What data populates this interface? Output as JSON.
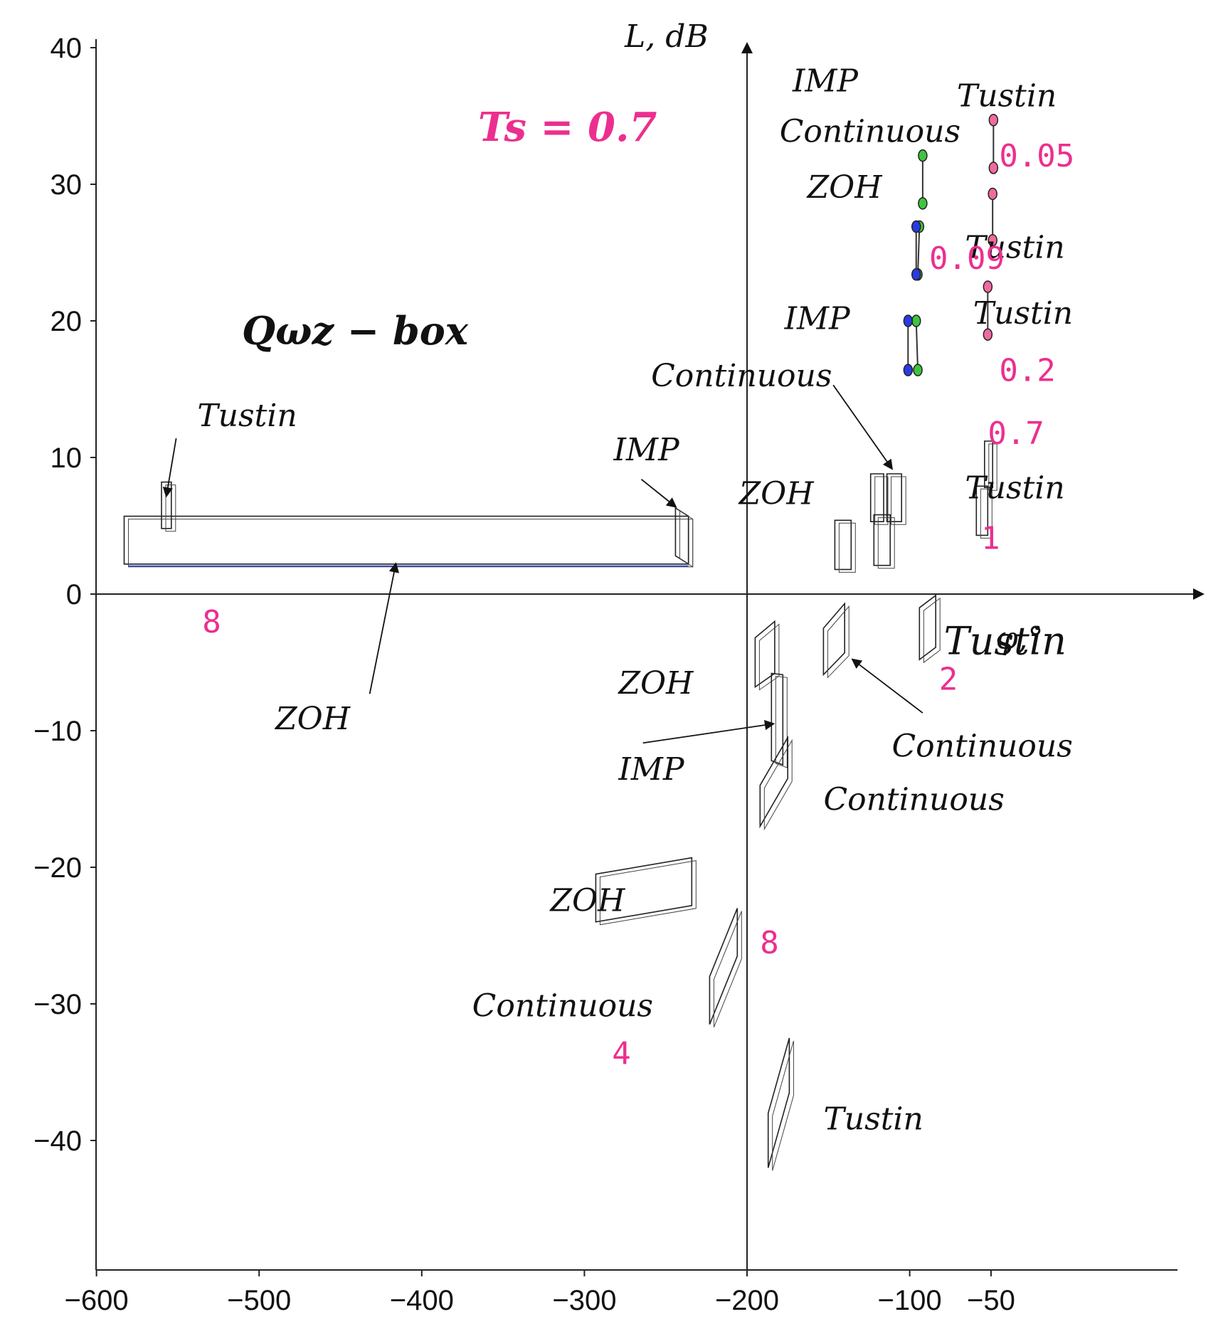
{
  "chart_data": {
    "type": "scatter",
    "title": "",
    "xlabel": "φ,°",
    "ylabel": "L, dB",
    "xlim": [
      -600,
      -30
    ],
    "ylim": [
      -50,
      40
    ],
    "xticks": [
      {
        "v": -600,
        "label": "−600"
      },
      {
        "v": -500,
        "label": "−500"
      },
      {
        "v": -400,
        "label": "−400"
      },
      {
        "v": -300,
        "label": "−300"
      },
      {
        "v": -200,
        "label": "−200"
      },
      {
        "v": -100,
        "label": "−100"
      },
      {
        "v": -50,
        "label": "−50"
      }
    ],
    "yticks": [
      {
        "v": 40,
        "label": "40"
      },
      {
        "v": 30,
        "label": "30"
      },
      {
        "v": 20,
        "label": "20"
      },
      {
        "v": 10,
        "label": "10"
      },
      {
        "v": 0,
        "label": "0"
      },
      {
        "v": -10,
        "label": "−10"
      },
      {
        "v": -20,
        "label": "−20"
      },
      {
        "v": -30,
        "label": "−30"
      },
      {
        "v": -40,
        "label": "−40"
      }
    ],
    "ts_label": "Ts = 0.7",
    "qbox_label": "Qωz − box",
    "point_series": [
      {
        "name": "Continuous",
        "color": "#f06aa0",
        "points": [
          [
            -48.5,
            34.7
          ],
          [
            -48.5,
            31.2
          ],
          [
            -49,
            29.3
          ],
          [
            -49,
            25.9
          ],
          [
            -52,
            22.5
          ],
          [
            -52,
            19.0
          ]
        ]
      },
      {
        "name": "ZOH",
        "color": "#3ec43e",
        "points": [
          [
            -92,
            32.1
          ],
          [
            -92,
            28.6
          ],
          [
            -94,
            26.9
          ],
          [
            -95,
            23.4
          ],
          [
            -96,
            20.0
          ],
          [
            -95,
            16.4
          ]
        ]
      },
      {
        "name": "IMP",
        "color": "#2a3ce0",
        "points": [
          [
            -101,
            20.0
          ],
          [
            -101,
            16.4
          ],
          [
            -96,
            26.9
          ],
          [
            -96,
            23.4
          ]
        ]
      }
    ],
    "boxes": [
      {
        "group": "8",
        "method": "ZOH",
        "corners": [
          [
            -583,
            5.7
          ],
          [
            -236,
            5.7
          ],
          [
            -236,
            2.2
          ],
          [
            -583,
            2.2
          ]
        ]
      },
      {
        "group": "8",
        "method": "Tustin",
        "corners": [
          [
            -560,
            8.2
          ],
          [
            -554,
            8.2
          ],
          [
            -554,
            4.8
          ],
          [
            -560,
            4.8
          ]
        ]
      },
      {
        "group": "8",
        "method": "IMP",
        "corners": [
          [
            -244,
            6.3
          ],
          [
            -236,
            5.7
          ],
          [
            -236,
            2.2
          ],
          [
            -244,
            2.8
          ]
        ]
      },
      {
        "group": "1",
        "method": "ZOH",
        "corners": [
          [
            -146,
            5.4
          ],
          [
            -136,
            5.4
          ],
          [
            -136,
            1.8
          ],
          [
            -146,
            1.8
          ]
        ]
      },
      {
        "group": "1",
        "method": "Continuous",
        "corners": [
          [
            -114,
            8.8
          ],
          [
            -105,
            8.8
          ],
          [
            -105,
            5.3
          ],
          [
            -114,
            5.3
          ]
        ]
      },
      {
        "group": "1",
        "method": "IMP",
        "corners": [
          [
            -124,
            8.8
          ],
          [
            -116,
            8.8
          ],
          [
            -116,
            5.3
          ],
          [
            -124,
            5.3
          ]
        ]
      },
      {
        "group": "1",
        "method": "ZOH2",
        "corners": [
          [
            -122,
            5.8
          ],
          [
            -112,
            5.8
          ],
          [
            -112,
            2.1
          ],
          [
            -122,
            2.1
          ]
        ]
      },
      {
        "group": "0.7",
        "method": "Tustin",
        "corners": [
          [
            -54,
            11.2
          ],
          [
            -49,
            11.2
          ],
          [
            -49,
            7.8
          ],
          [
            -54,
            7.8
          ]
        ]
      },
      {
        "group": "1",
        "method": "Tustin",
        "corners": [
          [
            -59,
            7.9
          ],
          [
            -52,
            7.9
          ],
          [
            -52,
            4.3
          ],
          [
            -59,
            4.3
          ]
        ]
      },
      {
        "group": "2",
        "method": "Tustin",
        "corners": [
          [
            -94,
            -1.0
          ],
          [
            -84,
            -0.1
          ],
          [
            -84,
            -3.9
          ],
          [
            -94,
            -4.8
          ]
        ]
      },
      {
        "group": "2",
        "method": "Continuous",
        "corners": [
          [
            -153,
            -2.5
          ],
          [
            -140,
            -0.7
          ],
          [
            -140,
            -4.3
          ],
          [
            -153,
            -5.9
          ]
        ]
      },
      {
        "group": "2",
        "method": "ZOH",
        "corners": [
          [
            -195,
            -3.2
          ],
          [
            -183,
            -2.0
          ],
          [
            -183,
            -5.8
          ],
          [
            -195,
            -6.8
          ]
        ]
      },
      {
        "group": "4",
        "method": "IMP",
        "corners": [
          [
            -185,
            -5.8
          ],
          [
            -178,
            -5.9
          ],
          [
            -178,
            -12.5
          ],
          [
            -185,
            -12.2
          ]
        ]
      },
      {
        "group": "4",
        "method": "Continuous",
        "corners": [
          [
            -192,
            -14.0
          ],
          [
            -175,
            -10.5
          ],
          [
            -175,
            -13.5
          ],
          [
            -192,
            -17.0
          ]
        ]
      },
      {
        "group": "4",
        "method": "ZOH",
        "corners": [
          [
            -293,
            -20.5
          ],
          [
            -234,
            -19.3
          ],
          [
            -234,
            -22.8
          ],
          [
            -293,
            -24.0
          ]
        ]
      },
      {
        "group": "8",
        "method": "Continuous",
        "corners": [
          [
            -223,
            -28.0
          ],
          [
            -206,
            -23.0
          ],
          [
            -206,
            -26.5
          ],
          [
            -223,
            -31.5
          ]
        ]
      },
      {
        "group": "8",
        "method": "Tustin",
        "corners": [
          [
            -187,
            -38.0
          ],
          [
            -174,
            -32.5
          ],
          [
            -174,
            -36.5
          ],
          [
            -187,
            -42.0
          ]
        ]
      }
    ],
    "annotations": [
      {
        "text": "IMP",
        "x": -172,
        "y": 36.8,
        "kind": "label"
      },
      {
        "text": "Continuous",
        "x": -180,
        "y": 33.1,
        "kind": "label"
      },
      {
        "text": "ZOH",
        "x": -163,
        "y": 29.0,
        "kind": "label"
      },
      {
        "text": "Tustin",
        "x": -71,
        "y": 35.7,
        "kind": "label"
      },
      {
        "text": "0.05",
        "x": -45,
        "y": 31.3,
        "kind": "pink"
      },
      {
        "text": "Tustin",
        "x": -66,
        "y": 24.6,
        "kind": "label"
      },
      {
        "text": "0.09",
        "x": -88,
        "y": 23.8,
        "kind": "pink"
      },
      {
        "text": "IMP",
        "x": -177,
        "y": 19.4,
        "kind": "label"
      },
      {
        "text": "Tustin",
        "x": -61,
        "y": 19.8,
        "kind": "label"
      },
      {
        "text": "Continuous",
        "x": -259,
        "y": 15.2,
        "kind": "label"
      },
      {
        "text": "0.2",
        "x": -45,
        "y": 15.6,
        "kind": "pink"
      },
      {
        "text": "Tustin",
        "x": -538,
        "y": 12.3,
        "kind": "label"
      },
      {
        "text": "IMP",
        "x": -282,
        "y": 9.8,
        "kind": "label"
      },
      {
        "text": "0.7",
        "x": -52,
        "y": 11.0,
        "kind": "pink"
      },
      {
        "text": "ZOH",
        "x": -205,
        "y": 6.6,
        "kind": "label"
      },
      {
        "text": "Tustin",
        "x": -66,
        "y": 7.0,
        "kind": "label"
      },
      {
        "text": "1",
        "x": -56,
        "y": 3.3,
        "kind": "pink"
      },
      {
        "text": "8",
        "x": -535,
        "y": -2.8,
        "kind": "pink"
      },
      {
        "text": "Tustin",
        "x": -79,
        "y": -4.4,
        "kind": "big"
      },
      {
        "text": "φ,°",
        "x": -47,
        "y": -4.0,
        "kind": "axis"
      },
      {
        "text": "2",
        "x": -82,
        "y": -7.0,
        "kind": "pink"
      },
      {
        "text": "ZOH",
        "x": -279,
        "y": -7.3,
        "kind": "label"
      },
      {
        "text": "ZOH",
        "x": -490,
        "y": -9.9,
        "kind": "label"
      },
      {
        "text": "Continuous",
        "x": -111,
        "y": -11.9,
        "kind": "label"
      },
      {
        "text": "IMP",
        "x": -279,
        "y": -13.6,
        "kind": "label"
      },
      {
        "text": "Continuous",
        "x": -153,
        "y": -15.8,
        "kind": "label"
      },
      {
        "text": "ZOH",
        "x": -321,
        "y": -23.2,
        "kind": "label"
      },
      {
        "text": "8",
        "x": -192,
        "y": -26.3,
        "kind": "pink"
      },
      {
        "text": "Continuous",
        "x": -369,
        "y": -30.9,
        "kind": "label"
      },
      {
        "text": "4",
        "x": -283,
        "y": -34.4,
        "kind": "pink"
      },
      {
        "text": "Tustin",
        "x": -153,
        "y": -39.2,
        "kind": "label"
      }
    ],
    "arrows": [
      {
        "from": [
          -551,
          11.4
        ],
        "to": [
          -557,
          7.2
        ]
      },
      {
        "from": [
          -265,
          8.4
        ],
        "to": [
          -244,
          6.4
        ]
      },
      {
        "from": [
          -432,
          -7.3
        ],
        "to": [
          -416,
          2.2
        ]
      },
      {
        "from": [
          -147,
          15.3
        ],
        "to": [
          -111,
          9.2
        ]
      },
      {
        "from": [
          -264,
          -10.9
        ],
        "to": [
          -184,
          -9.5
        ]
      },
      {
        "from": [
          -92,
          -8.7
        ],
        "to": [
          -135,
          -4.8
        ]
      }
    ]
  }
}
